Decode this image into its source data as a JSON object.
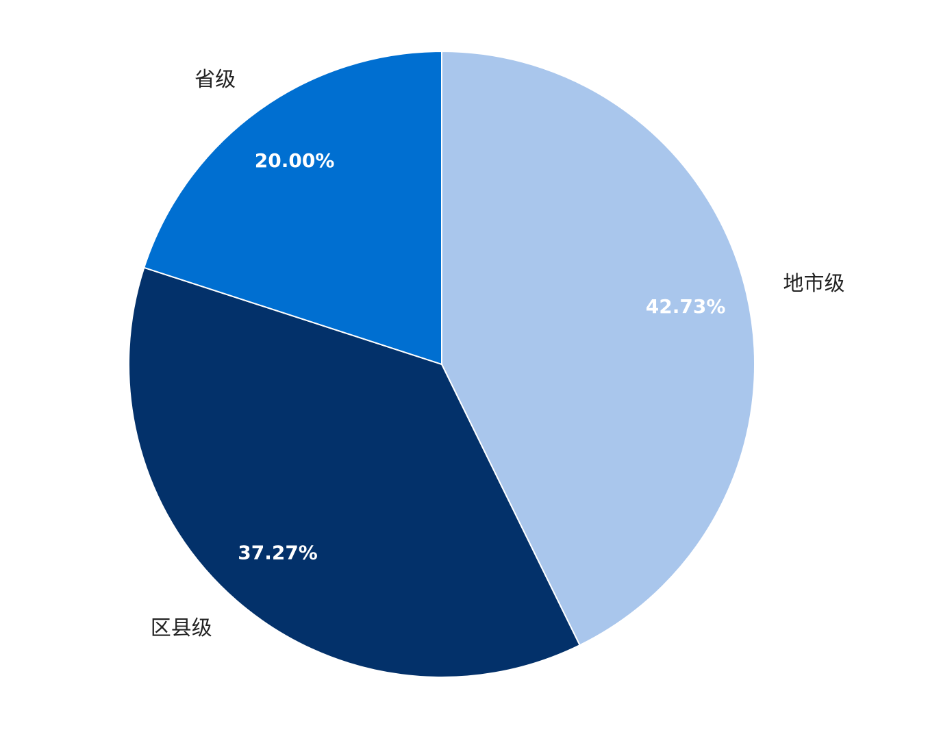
{
  "chart_data": {
    "type": "pie",
    "categories": [
      "地市级",
      "区县级",
      "省级"
    ],
    "values": [
      42.73,
      37.27,
      20.0
    ],
    "value_labels": [
      "42.73%",
      "37.27%",
      "20.00%"
    ],
    "colors": [
      "#a9c6ec",
      "#03316a",
      "#006fd1"
    ]
  }
}
